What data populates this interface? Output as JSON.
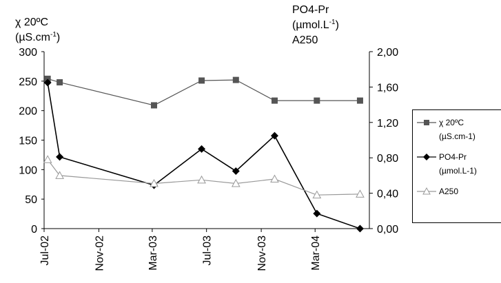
{
  "chart_data": {
    "type": "line",
    "left_axis": {
      "label_line1": "χ  20ºC",
      "label_line2_pre": "(µS.cm",
      "label_line2_sup": "-1",
      "label_line2_post": ")",
      "ylim": [
        0,
        300
      ],
      "ticks": [
        "0",
        "50",
        "100",
        "150",
        "200",
        "250",
        "300"
      ]
    },
    "right_axis": {
      "label_line1": "PO4-Pr",
      "label_line2_pre": "(µmol.L",
      "label_line2_sup": "-1",
      "label_line2_post": ")",
      "label_line3": "A250",
      "ylim": [
        0,
        2
      ],
      "ticks": [
        "0,00",
        "0,40",
        "0,80",
        "1,20",
        "1,60",
        "2,00"
      ]
    },
    "x_axis": {
      "range": [
        "2002-07-01",
        "2004-07-01"
      ],
      "ticks": [
        {
          "date": "2002-07-01",
          "label": "Jul-02"
        },
        {
          "date": "2002-11-01",
          "label": "Nov-02"
        },
        {
          "date": "2003-03-01",
          "label": "Mar-03"
        },
        {
          "date": "2003-07-01",
          "label": "Jul-03"
        },
        {
          "date": "2003-11-01",
          "label": "Nov-03"
        },
        {
          "date": "2004-03-01",
          "label": "Mar-04"
        }
      ]
    },
    "series": [
      {
        "name": "χ  20ºC (µS.cm-1)",
        "axis": "left",
        "color": "#555555",
        "marker": "square",
        "points": [
          {
            "x": "2002-07-09",
            "y": 254
          },
          {
            "x": "2002-08-05",
            "y": 248
          },
          {
            "x": "2003-03-05",
            "y": 209
          },
          {
            "x": "2003-06-20",
            "y": 251
          },
          {
            "x": "2003-09-05",
            "y": 252
          },
          {
            "x": "2003-12-01",
            "y": 217
          },
          {
            "x": "2004-03-05",
            "y": 217
          },
          {
            "x": "2004-06-10",
            "y": 217
          }
        ]
      },
      {
        "name": "PO4-Pr (µmol.L-1)",
        "axis": "right",
        "color": "#000000",
        "marker": "diamond",
        "points": [
          {
            "x": "2002-07-09",
            "y": 1.65
          },
          {
            "x": "2002-08-05",
            "y": 0.81
          },
          {
            "x": "2003-03-05",
            "y": 0.49
          },
          {
            "x": "2003-06-20",
            "y": 0.9
          },
          {
            "x": "2003-09-05",
            "y": 0.65
          },
          {
            "x": "2003-12-01",
            "y": 1.05
          },
          {
            "x": "2004-03-05",
            "y": 0.17
          },
          {
            "x": "2004-06-10",
            "y": 0.0
          }
        ]
      },
      {
        "name": "A250",
        "axis": "right",
        "color": "#999999",
        "marker": "triangle",
        "points": [
          {
            "x": "2002-07-09",
            "y": 0.78
          },
          {
            "x": "2002-08-05",
            "y": 0.6
          },
          {
            "x": "2003-03-05",
            "y": 0.51
          },
          {
            "x": "2003-06-20",
            "y": 0.55
          },
          {
            "x": "2003-09-05",
            "y": 0.51
          },
          {
            "x": "2003-12-01",
            "y": 0.56
          },
          {
            "x": "2004-03-05",
            "y": 0.38
          },
          {
            "x": "2004-06-10",
            "y": 0.39
          }
        ]
      }
    ],
    "legend": {
      "placement": "right",
      "items": [
        {
          "line1": "χ  20ºC",
          "line2": "(µS.cm-1)"
        },
        {
          "line1": "PO4-Pr",
          "line2": "(µmol.L-1)"
        },
        {
          "line1": "A250",
          "line2": ""
        }
      ]
    }
  }
}
